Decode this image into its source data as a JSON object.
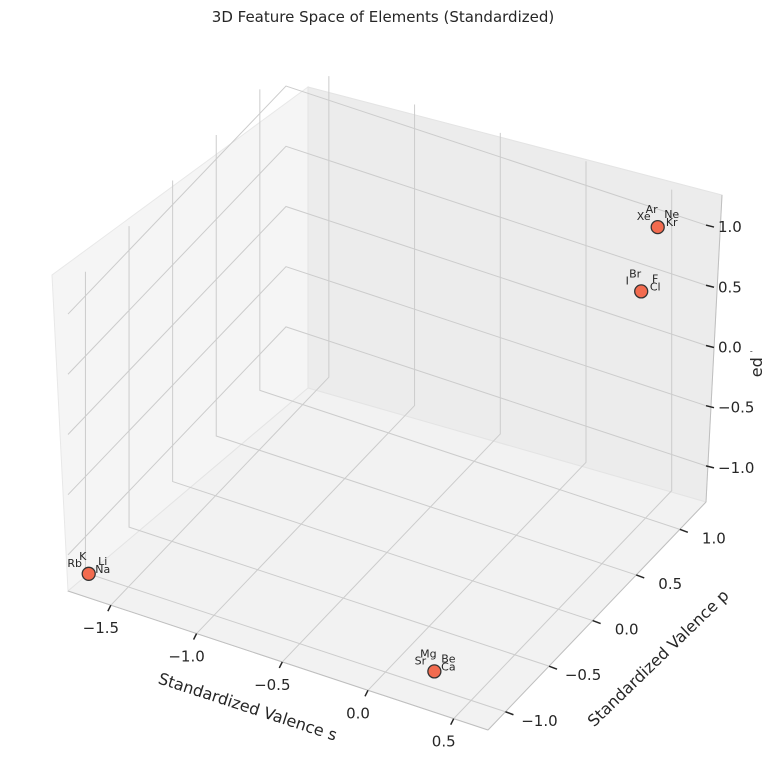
{
  "chart_data": {
    "type": "scatter",
    "projection": "3d",
    "title": "3D Feature Space of Elements (Standardized)",
    "xlabel": "Standardized Valence s",
    "ylabel": "Standardized Valence p",
    "zlabel": "Standardized Valence Total",
    "x_ticks": [
      "−1.5",
      "−1.0",
      "−0.5",
      "0.0",
      "0.5"
    ],
    "y_ticks": [
      "−1.0",
      "−0.5",
      "0.0",
      "0.5",
      "1.0"
    ],
    "z_ticks": [
      "−1.0",
      "−0.5",
      "0.0",
      "0.5",
      "1.0"
    ],
    "xlim": [
      -1.75,
      0.7
    ],
    "ylim": [
      -1.2,
      1.3
    ],
    "zlim": [
      -1.3,
      1.2
    ],
    "grid": true,
    "marker_color": "#f26b4f",
    "marker_edge": "#333333",
    "pane_color": "#f2f2f2",
    "grid_color": "#cccccc",
    "points": [
      {
        "x": -1.68,
        "y": -1.1,
        "z": -1.2,
        "labels": [
          "K",
          "Rb",
          "Li",
          "Na"
        ]
      },
      {
        "x": 0.26,
        "y": -0.95,
        "z": -1.21,
        "labels": [
          "Mg",
          "Sr",
          "Be",
          "Ca"
        ]
      },
      {
        "x": 0.5,
        "y": 0.95,
        "z": 0.62,
        "labels": [
          "Br",
          "I",
          "F",
          "Cl"
        ]
      },
      {
        "x": 0.52,
        "y": 1.1,
        "z": 1.05,
        "labels": [
          "Ar",
          "Xe",
          "Ne",
          "Kr"
        ]
      }
    ]
  }
}
